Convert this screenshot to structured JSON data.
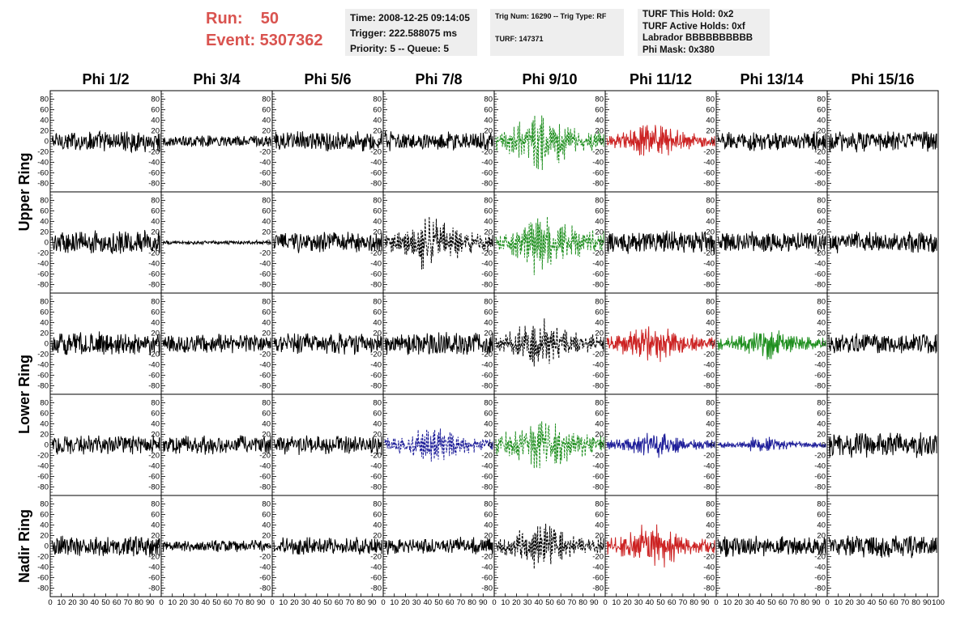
{
  "header": {
    "run_label": "Run:    50",
    "event_label": "Event: 5307362",
    "time": "Time: 2008-12-25 09:14:05",
    "trigger": "Trigger: 222.588075 ms",
    "priority": "Priority: 5 -- Queue: 5",
    "trig_num": "Trig Num: 16290 -- Trig Type: RF",
    "turf": "TURF: 147371",
    "turf_this_hold": "TURF This Hold: 0x2",
    "turf_active_holds": "TURF Active Holds: 0xf",
    "labrador": "Labrador BBBBBBBBBB",
    "phi_mask": "Phi Mask: 0x380"
  },
  "colors": {
    "header_red": "#d9534f",
    "box_bg": "#eeeeee",
    "black": "#000000",
    "red": "#cc2222",
    "green": "#1f8f1f",
    "blue": "#1f1f9a"
  },
  "chart_data": {
    "type": "line",
    "columns": [
      "Phi 1/2",
      "Phi 3/4",
      "Phi 5/6",
      "Phi 7/8",
      "Phi 9/10",
      "Phi 11/12",
      "Phi 13/14",
      "Phi 15/16"
    ],
    "row_groups": [
      {
        "label": "Upper Ring",
        "rows": [
          0,
          1
        ]
      },
      {
        "label": "Lower Ring",
        "rows": [
          2,
          3
        ]
      },
      {
        "label": "Nadir Ring",
        "rows": [
          4
        ]
      }
    ],
    "ylim": [
      -90,
      90
    ],
    "xlim": [
      0,
      100
    ],
    "y_ticks": [
      80,
      60,
      40,
      20,
      0,
      -20,
      -40,
      -60,
      -80
    ],
    "y_tick_labels": [
      "80",
      "60",
      "40",
      "20",
      "0",
      "-20",
      "-40",
      "-60",
      "-80"
    ],
    "x_ticks": [
      0,
      10,
      20,
      30,
      40,
      50,
      60,
      70,
      80,
      90,
      100
    ],
    "x_tick_labels": [
      "0",
      "10",
      "20",
      "30",
      "40",
      "50",
      "60",
      "70",
      "80",
      "90",
      "100"
    ],
    "cells": [
      [
        {
          "color": "black",
          "style": "solid",
          "amplitude": 22,
          "envelope": "flat"
        },
        {
          "color": "black",
          "style": "solid",
          "amplitude": 12,
          "envelope": "flat"
        },
        {
          "color": "black",
          "style": "solid",
          "amplitude": 22,
          "envelope": "flat"
        },
        {
          "color": "black",
          "style": "solid",
          "amplitude": 20,
          "envelope": "flat"
        },
        {
          "color": "green",
          "style": "dashed",
          "amplitude": 45,
          "envelope": "pulse"
        },
        {
          "color": "red",
          "style": "solid",
          "amplitude": 30,
          "envelope": "pulse"
        },
        {
          "color": "black",
          "style": "solid",
          "amplitude": 20,
          "envelope": "flat"
        },
        {
          "color": "black",
          "style": "solid",
          "amplitude": 22,
          "envelope": "flat"
        }
      ],
      [
        {
          "color": "black",
          "style": "solid",
          "amplitude": 25,
          "envelope": "flat"
        },
        {
          "color": "black",
          "style": "solid",
          "amplitude": 4,
          "envelope": "flat"
        },
        {
          "color": "black",
          "style": "solid",
          "amplitude": 22,
          "envelope": "flat"
        },
        {
          "color": "black",
          "style": "dashed",
          "amplitude": 42,
          "envelope": "pulse"
        },
        {
          "color": "green",
          "style": "dashed",
          "amplitude": 48,
          "envelope": "pulse"
        },
        {
          "color": "black",
          "style": "solid",
          "amplitude": 24,
          "envelope": "flat"
        },
        {
          "color": "black",
          "style": "solid",
          "amplitude": 22,
          "envelope": "flat"
        },
        {
          "color": "black",
          "style": "solid",
          "amplitude": 22,
          "envelope": "flat"
        }
      ],
      [
        {
          "color": "black",
          "style": "solid",
          "amplitude": 24,
          "envelope": "flat"
        },
        {
          "color": "black",
          "style": "solid",
          "amplitude": 20,
          "envelope": "flat"
        },
        {
          "color": "black",
          "style": "solid",
          "amplitude": 22,
          "envelope": "flat"
        },
        {
          "color": "black",
          "style": "solid",
          "amplitude": 24,
          "envelope": "flat"
        },
        {
          "color": "black",
          "style": "dashed",
          "amplitude": 38,
          "envelope": "pulse"
        },
        {
          "color": "red",
          "style": "solid",
          "amplitude": 32,
          "envelope": "pulse"
        },
        {
          "color": "green",
          "style": "solid",
          "amplitude": 26,
          "envelope": "pulse"
        },
        {
          "color": "black",
          "style": "solid",
          "amplitude": 22,
          "envelope": "flat"
        }
      ],
      [
        {
          "color": "black",
          "style": "solid",
          "amplitude": 20,
          "envelope": "flat"
        },
        {
          "color": "black",
          "style": "solid",
          "amplitude": 20,
          "envelope": "flat"
        },
        {
          "color": "black",
          "style": "solid",
          "amplitude": 20,
          "envelope": "flat"
        },
        {
          "color": "blue",
          "style": "dashed",
          "amplitude": 30,
          "envelope": "pulse"
        },
        {
          "color": "green",
          "style": "dashed",
          "amplitude": 45,
          "envelope": "pulse"
        },
        {
          "color": "blue",
          "style": "solid",
          "amplitude": 20,
          "envelope": "pulse"
        },
        {
          "color": "blue",
          "style": "solid",
          "amplitude": 12,
          "envelope": "pulse"
        },
        {
          "color": "black",
          "style": "solid",
          "amplitude": 26,
          "envelope": "flat"
        }
      ],
      [
        {
          "color": "black",
          "style": "solid",
          "amplitude": 22,
          "envelope": "flat"
        },
        {
          "color": "black",
          "style": "solid",
          "amplitude": 12,
          "envelope": "flat"
        },
        {
          "color": "black",
          "style": "solid",
          "amplitude": 18,
          "envelope": "flat"
        },
        {
          "color": "black",
          "style": "solid",
          "amplitude": 18,
          "envelope": "flat"
        },
        {
          "color": "black",
          "style": "dashed",
          "amplitude": 35,
          "envelope": "pulse"
        },
        {
          "color": "red",
          "style": "solid",
          "amplitude": 35,
          "envelope": "pulse"
        },
        {
          "color": "black",
          "style": "solid",
          "amplitude": 22,
          "envelope": "flat"
        },
        {
          "color": "black",
          "style": "solid",
          "amplitude": 24,
          "envelope": "flat"
        }
      ]
    ]
  }
}
